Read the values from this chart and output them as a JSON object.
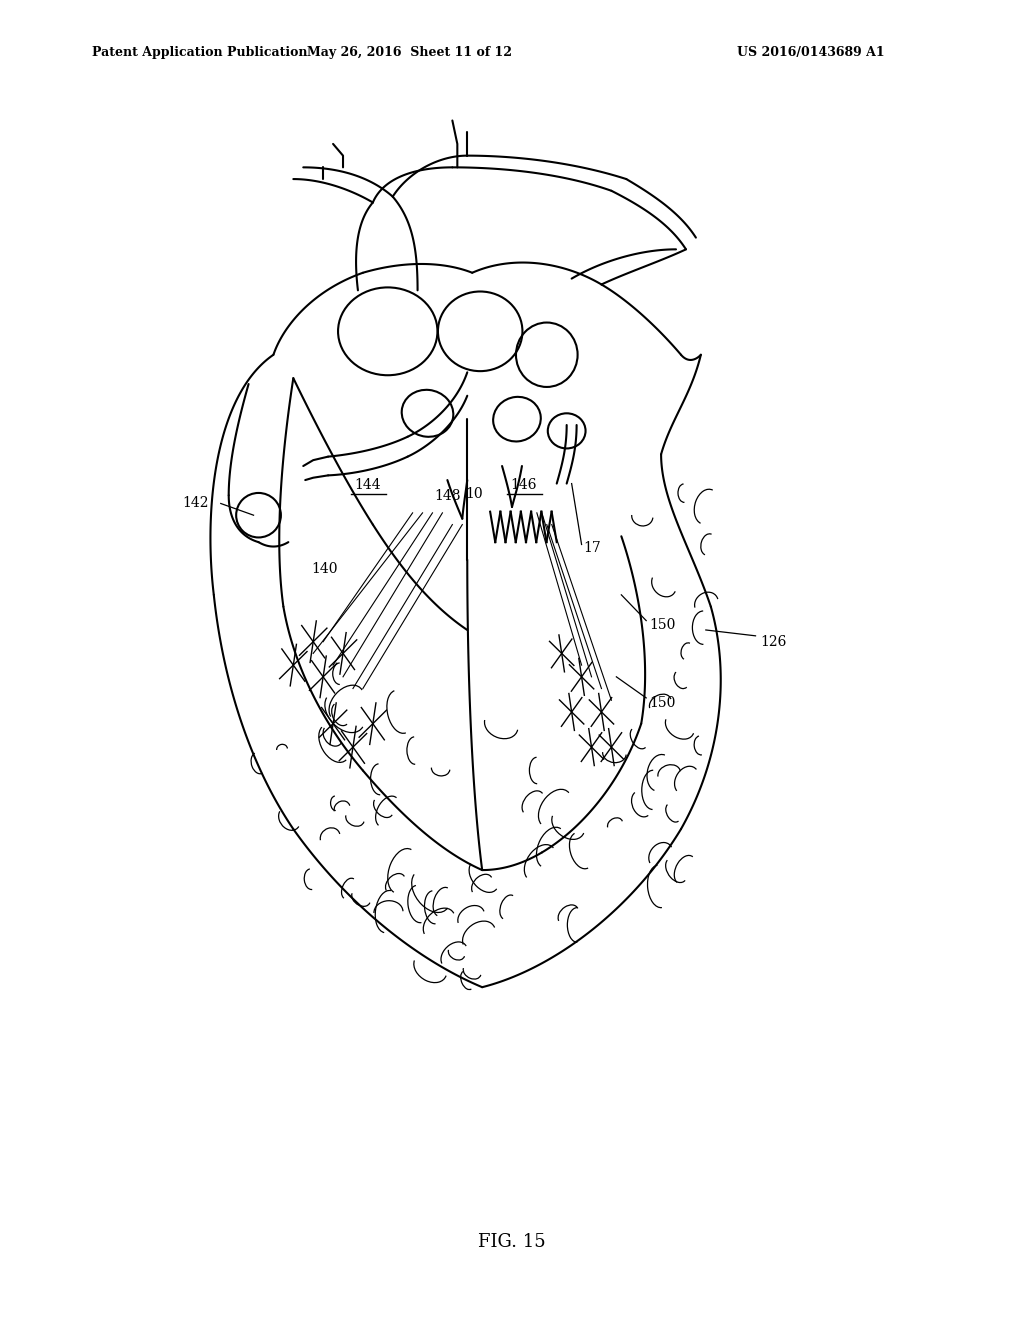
{
  "background_color": "#ffffff",
  "header_left": "Patent Application Publication",
  "header_mid": "May 26, 2016  Sheet 11 of 12",
  "header_right": "US 2016/0143689 A1",
  "fig_label": "FIG. 15",
  "line_color": "#000000",
  "line_width": 1.5,
  "label_fontsize": 10
}
